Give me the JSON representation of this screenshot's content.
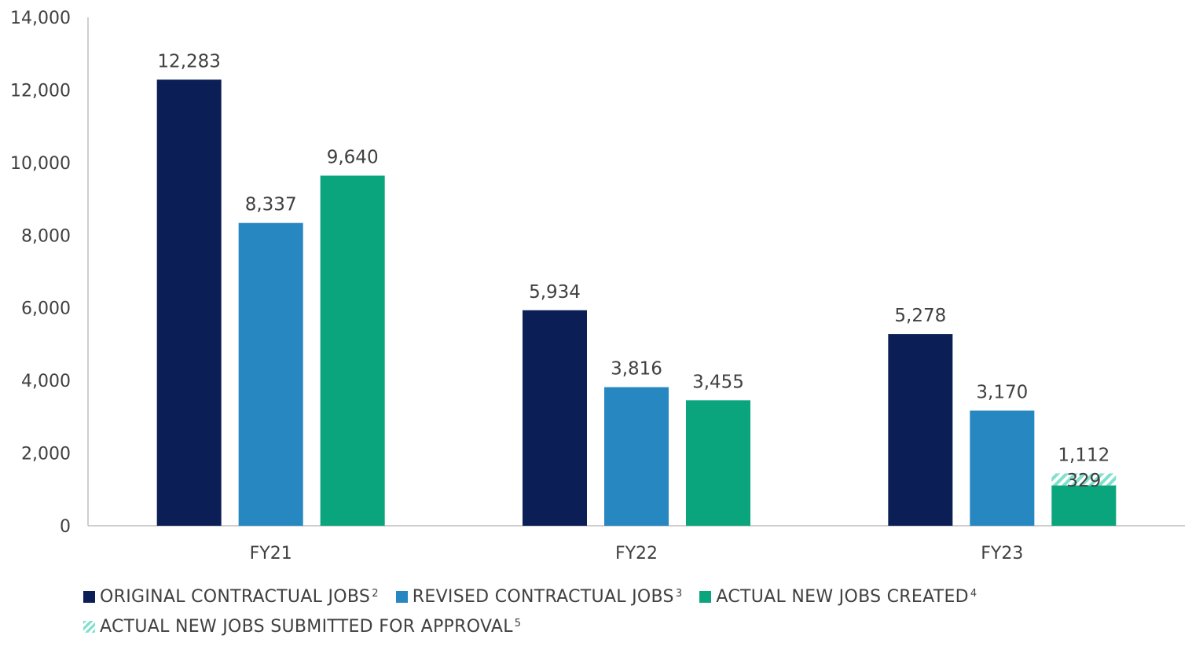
{
  "chart_data": {
    "type": "bar",
    "categories": [
      "FY21",
      "FY22",
      "FY23"
    ],
    "ylim": [
      0,
      14000
    ],
    "yticks": [
      0,
      2000,
      4000,
      6000,
      8000,
      10000,
      12000,
      14000
    ],
    "ytick_labels": [
      "0",
      "2,000",
      "4,000",
      "6,000",
      "8,000",
      "10,000",
      "12,000",
      "14,000"
    ],
    "grid": false,
    "legend_position": "bottom",
    "series": [
      {
        "name": "ORIGINAL CONTRACTUAL JOBS",
        "sup": "2",
        "color": "#0b1f56",
        "values": [
          12283,
          5934,
          5278
        ],
        "labels": [
          "12,283",
          "5,934",
          "5,278"
        ]
      },
      {
        "name": "REVISED CONTRACTUAL JOBS",
        "sup": "3",
        "color": "#2787c0",
        "values": [
          8337,
          3816,
          3170
        ],
        "labels": [
          "8,337",
          "3,816",
          "3,170"
        ]
      },
      {
        "name": "ACTUAL NEW JOBS CREATED",
        "sup": "4",
        "color": "#0aa57d",
        "values": [
          9640,
          3455,
          1112
        ],
        "labels": [
          "9,640",
          "3,455",
          "1,112"
        ]
      },
      {
        "name": "ACTUAL NEW JOBS SUBMITTED FOR APPROVAL",
        "sup": "5",
        "color": "#7fe0cc",
        "pattern": "hatched",
        "stacked_on": "ACTUAL NEW JOBS CREATED",
        "values": [
          null,
          null,
          329
        ],
        "labels": [
          "",
          "",
          "329"
        ]
      }
    ]
  }
}
